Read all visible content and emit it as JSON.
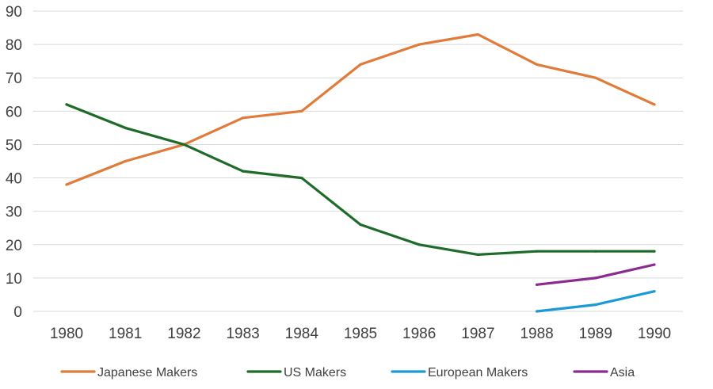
{
  "chart_data": {
    "type": "line",
    "title": "",
    "xlabel": "",
    "ylabel": "",
    "x": [
      "1980",
      "1981",
      "1982",
      "1983",
      "1984",
      "1985",
      "1986",
      "1987",
      "1988",
      "1989",
      "1990"
    ],
    "ylim": [
      0,
      90
    ],
    "yticks": [
      0,
      10,
      20,
      30,
      40,
      50,
      60,
      70,
      80,
      90
    ],
    "grid": true,
    "legend_position": "bottom",
    "series": [
      {
        "name": "Japanese Makers",
        "color": "#e07b39",
        "values": [
          38,
          45,
          50,
          58,
          60,
          74,
          80,
          83,
          74,
          70,
          62
        ]
      },
      {
        "name": "US Makers",
        "color": "#1e6b2a",
        "values": [
          62,
          55,
          50,
          42,
          40,
          26,
          20,
          17,
          18,
          18,
          18
        ]
      },
      {
        "name": "European Makers",
        "color": "#1c9ad6",
        "values": [
          null,
          null,
          null,
          null,
          null,
          null,
          null,
          null,
          0,
          2,
          6
        ]
      },
      {
        "name": "Asia",
        "color": "#8b2a8f",
        "values": [
          null,
          null,
          null,
          null,
          null,
          null,
          null,
          null,
          8,
          10,
          14
        ]
      }
    ]
  }
}
